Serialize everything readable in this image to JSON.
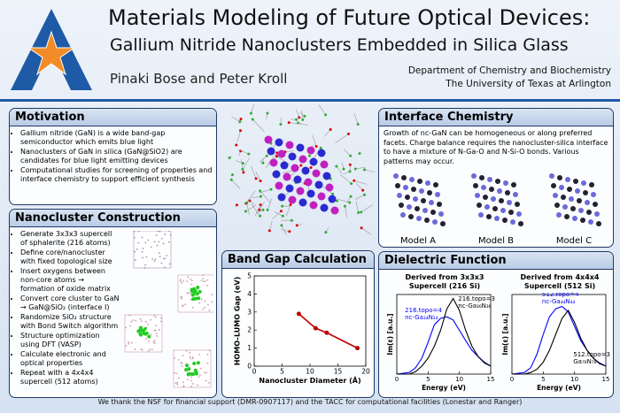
{
  "header": {
    "title": "Materials Modeling of Future Optical Devices:",
    "subtitle": "Gallium Nitride Nanoclusters Embedded in Silica Glass",
    "authors": "Pinaki Bose and Peter Kroll",
    "department": "Department of Chemistry and Biochemistry",
    "university": "The University of Texas at Arlington"
  },
  "motivation": {
    "title": "Motivation",
    "bullets": [
      "Gallium nitride (GaN) is a wide band-gap semiconductor which emits blue light",
      "Nanoclusters of GaN in silica (GaN@SiO2) are candidates for blue light emitting devices",
      "Computational studies for screening of properties and interface chemistry to support efficient synthesis"
    ]
  },
  "construction": {
    "title": "Nanocluster Construction",
    "bullets": [
      "Generate 3x3x3 supercell of sphalerite (216 atoms)",
      "Define core/nanocluster with fixed topological size",
      "Insert oxygens between non-core atoms → formation of oxide matrix",
      "Convert core cluster to GaN → GaN@SiO₂ (interface I)",
      "Randomize SiO₂ structure with Bond Switch algorithm",
      "Structure optimization using DFT (VASP)",
      "Calculate electronic and optical properties",
      "Repeat with a 4x4x4 supercell (512 atoms)"
    ]
  },
  "interface": {
    "title": "Interface Chemistry",
    "text": "Growth of nc-GaN can be homogeneous or along preferred facets. Charge balance requires the nanocluster-silica interface to have a mixture of N-Ga-O and N-Si-O bonds. Various patterns may occur.",
    "models": [
      "Model A",
      "Model B",
      "Model C"
    ]
  },
  "band_gap": {
    "title": "Band Gap Calculation",
    "chart": {
      "type": "line",
      "x": [
        8,
        11,
        13,
        18.5
      ],
      "values": [
        2.9,
        2.1,
        1.85,
        1.0
      ],
      "color": "#c00000",
      "xlabel": "Nanocluster Diameter (Å)",
      "ylabel": "HOMO–LUMO Gap (eV)",
      "xlim": [
        0,
        20
      ],
      "xticks": [
        0,
        5,
        10,
        15,
        20
      ],
      "ylim": [
        0,
        5
      ],
      "yticks": [
        0,
        1,
        2,
        3,
        4,
        5
      ]
    }
  },
  "dielectric": {
    "title": "Dielectric Function",
    "charts": [
      {
        "type": "line",
        "title": "Derived from 3x3x3 Supercell (216 Si)",
        "xlabel": "Energy (eV)",
        "ylabel": "Im(ε) [a.u.]",
        "xlim": [
          0,
          15
        ],
        "xticks": [
          0,
          5,
          10,
          15
        ],
        "ylim": [
          0,
          1
        ],
        "x": [
          0,
          2,
          3,
          4,
          5,
          6,
          7,
          8,
          9,
          10,
          11,
          12,
          13,
          14,
          15
        ],
        "series": [
          {
            "name": "216.topo=4",
            "formula": "nc-Ga₂₄N₂₄",
            "color": "#0000ff",
            "values": [
              0,
              0.02,
              0.08,
              0.2,
              0.4,
              0.62,
              0.7,
              0.72,
              0.68,
              0.55,
              0.42,
              0.3,
              0.22,
              0.15,
              0.1
            ]
          },
          {
            "name": "216.topo=3",
            "formula": "nc-Ga₃₆N₃₆",
            "color": "#000000",
            "values": [
              0,
              0,
              0.03,
              0.1,
              0.2,
              0.35,
              0.55,
              0.82,
              0.95,
              0.8,
              0.55,
              0.35,
              0.22,
              0.14,
              0.1
            ]
          }
        ]
      },
      {
        "type": "line",
        "title": "Derived from 4x4x4 Supercell (512 Si)",
        "xlabel": "Energy (eV)",
        "ylabel": "Im(ε) [a.u.]",
        "xlim": [
          0,
          15
        ],
        "xticks": [
          0,
          5,
          10,
          15
        ],
        "ylim": [
          0,
          1
        ],
        "x": [
          0,
          2,
          3,
          4,
          5,
          6,
          7,
          8,
          9,
          10,
          11,
          12,
          13,
          14,
          15
        ],
        "series": [
          {
            "name": "512.topo=4",
            "formula": "nc-Ga₄₄N₄₄",
            "color": "#0000ff",
            "values": [
              0,
              0.02,
              0.08,
              0.25,
              0.5,
              0.72,
              0.82,
              0.85,
              0.78,
              0.6,
              0.42,
              0.3,
              0.2,
              0.14,
              0.1
            ]
          },
          {
            "name": "512.topo=3",
            "formula": "Ga₇₈N₇₈",
            "color": "#000000",
            "values": [
              0,
              0,
              0.02,
              0.06,
              0.15,
              0.3,
              0.5,
              0.7,
              0.8,
              0.65,
              0.45,
              0.3,
              0.2,
              0.13,
              0.1
            ]
          }
        ]
      }
    ]
  },
  "footer": "We thank the NSF for financial support (DMR-0907117) and the TACC for computational facilities (Lonestar and Ranger)"
}
